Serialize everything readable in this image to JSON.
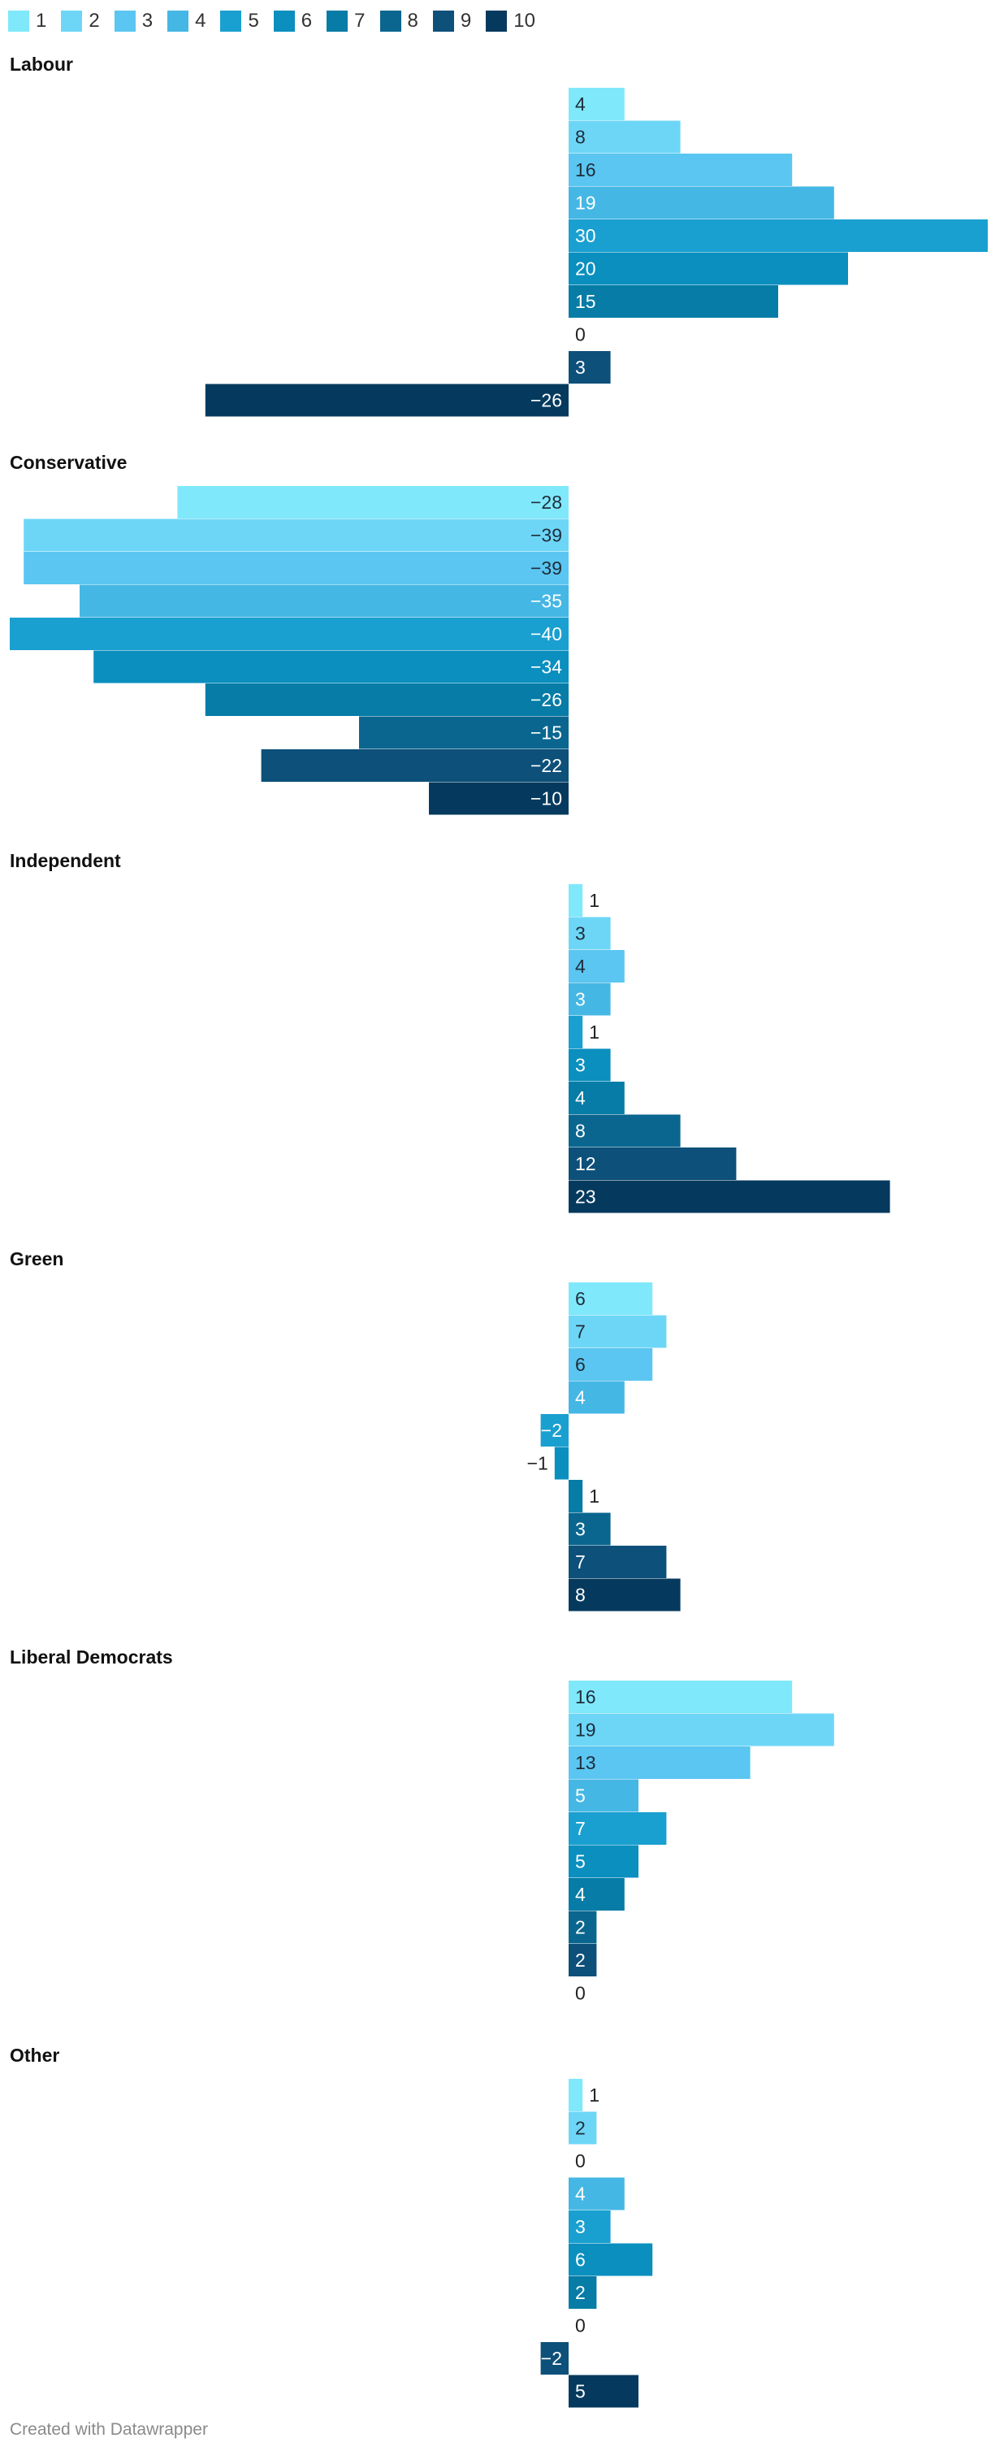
{
  "chart_data": {
    "type": "bar",
    "orientation": "horizontal",
    "legend_position": "top-left",
    "series_names": [
      "1",
      "2",
      "3",
      "4",
      "5",
      "6",
      "7",
      "8",
      "9",
      "10"
    ],
    "colors": [
      "#80e8fb",
      "#6dd6f7",
      "#5bc6f1",
      "#45b7e4",
      "#1aa0d0",
      "#0a8fbf",
      "#067ca6",
      "#0a668f",
      "#0d507a",
      "#053a5e"
    ],
    "xlim": [
      -40,
      30
    ],
    "panels": [
      {
        "title": "Labour",
        "values": [
          4,
          8,
          16,
          19,
          30,
          20,
          15,
          0,
          3,
          -26
        ]
      },
      {
        "title": "Conservative",
        "values": [
          -28,
          -39,
          -39,
          -35,
          -40,
          -34,
          -26,
          -15,
          -22,
          -10
        ]
      },
      {
        "title": "Independent",
        "values": [
          1,
          3,
          4,
          3,
          1,
          3,
          4,
          8,
          12,
          23
        ]
      },
      {
        "title": "Green",
        "values": [
          6,
          7,
          6,
          4,
          -2,
          -1,
          1,
          3,
          7,
          8
        ]
      },
      {
        "title": "Liberal Democrats",
        "values": [
          16,
          19,
          13,
          5,
          7,
          5,
          4,
          2,
          2,
          0
        ]
      },
      {
        "title": "Other",
        "values": [
          1,
          2,
          0,
          4,
          3,
          6,
          2,
          0,
          -2,
          5
        ]
      }
    ]
  },
  "credit": "Created with Datawrapper"
}
